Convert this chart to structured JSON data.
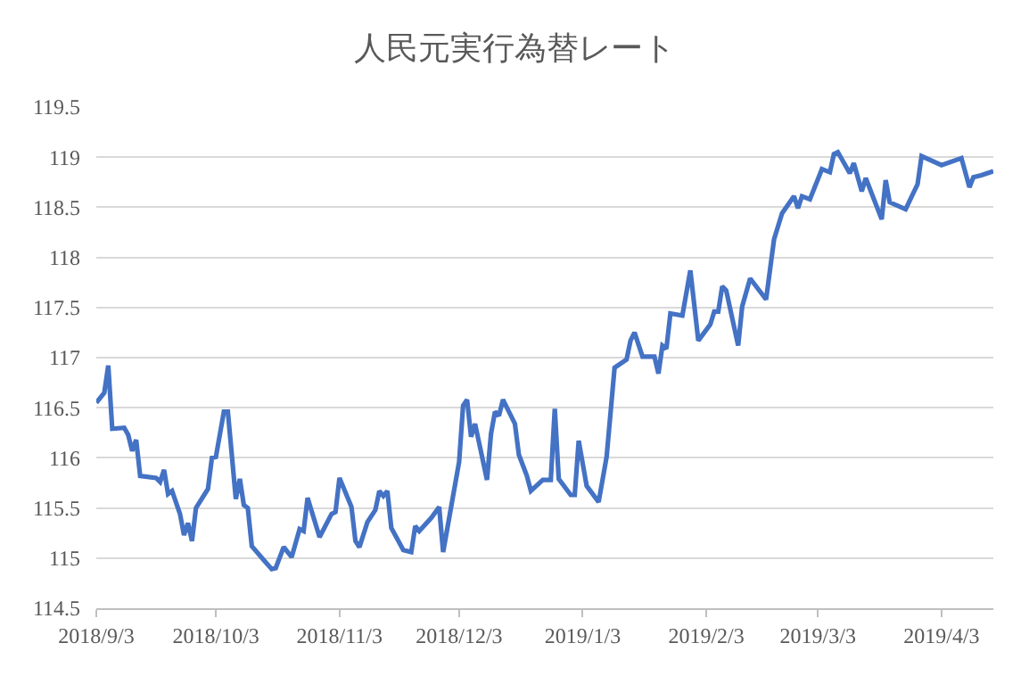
{
  "chart_data": {
    "type": "line",
    "title": "人民元実行為替レート",
    "x": [
      "2018-09-03",
      "2018-09-05",
      "2018-09-06",
      "2018-09-07",
      "2018-09-10",
      "2018-09-11",
      "2018-09-12",
      "2018-09-13",
      "2018-09-14",
      "2018-09-18",
      "2018-09-19",
      "2018-09-20",
      "2018-09-21",
      "2018-09-22",
      "2018-09-24",
      "2018-09-25",
      "2018-09-26",
      "2018-09-27",
      "2018-09-28",
      "2018-10-01",
      "2018-10-02",
      "2018-10-03",
      "2018-10-05",
      "2018-10-06",
      "2018-10-08",
      "2018-10-09",
      "2018-10-10",
      "2018-10-11",
      "2018-10-12",
      "2018-10-15",
      "2018-10-17",
      "2018-10-18",
      "2018-10-20",
      "2018-10-22",
      "2018-10-24",
      "2018-10-25",
      "2018-10-26",
      "2018-10-29",
      "2018-11-01",
      "2018-11-02",
      "2018-11-03",
      "2018-11-06",
      "2018-11-07",
      "2018-11-08",
      "2018-11-10",
      "2018-11-12",
      "2018-11-13",
      "2018-11-14",
      "2018-11-15",
      "2018-11-16",
      "2018-11-19",
      "2018-11-21",
      "2018-11-22",
      "2018-11-23",
      "2018-11-26",
      "2018-11-28",
      "2018-11-29",
      "2018-12-03",
      "2018-12-04",
      "2018-12-05",
      "2018-12-06",
      "2018-12-07",
      "2018-12-10",
      "2018-12-11",
      "2018-12-12",
      "2018-12-13",
      "2018-12-14",
      "2018-12-17",
      "2018-12-18",
      "2018-12-20",
      "2018-12-21",
      "2018-12-24",
      "2018-12-26",
      "2018-12-27",
      "2018-12-28",
      "2018-12-31",
      "2019-01-01",
      "2019-01-02",
      "2019-01-04",
      "2019-01-07",
      "2019-01-09",
      "2019-01-11",
      "2019-01-14",
      "2019-01-15",
      "2019-01-16",
      "2019-01-18",
      "2019-01-21",
      "2019-01-22",
      "2019-01-23",
      "2019-01-24",
      "2019-01-25",
      "2019-01-28",
      "2019-01-30",
      "2019-02-01",
      "2019-02-04",
      "2019-02-05",
      "2019-02-06",
      "2019-02-07",
      "2019-02-08",
      "2019-02-11",
      "2019-02-12",
      "2019-02-14",
      "2019-02-18",
      "2019-02-20",
      "2019-02-22",
      "2019-02-25",
      "2019-02-26",
      "2019-02-27",
      "2019-03-01",
      "2019-03-04",
      "2019-03-06",
      "2019-03-07",
      "2019-03-08",
      "2019-03-11",
      "2019-03-12",
      "2019-03-14",
      "2019-03-15",
      "2019-03-19",
      "2019-03-20",
      "2019-03-21",
      "2019-03-25",
      "2019-03-28",
      "2019-03-29",
      "2019-04-03",
      "2019-04-08",
      "2019-04-10",
      "2019-04-11",
      "2019-04-13",
      "2019-04-16"
    ],
    "series": [
      {
        "color": "#4472c4",
        "values": [
          116.55,
          116.65,
          116.92,
          116.29,
          116.3,
          116.23,
          116.07,
          116.18,
          115.82,
          115.8,
          115.76,
          115.88,
          115.64,
          115.67,
          115.44,
          115.23,
          115.35,
          115.17,
          115.5,
          115.69,
          116.0,
          116.01,
          116.46,
          116.46,
          115.59,
          115.79,
          115.53,
          115.5,
          115.12,
          114.98,
          114.89,
          114.9,
          115.11,
          115.01,
          115.29,
          115.27,
          115.6,
          115.21,
          115.44,
          115.46,
          115.8,
          115.51,
          115.17,
          115.11,
          115.36,
          115.48,
          115.67,
          115.62,
          115.67,
          115.3,
          115.08,
          115.06,
          115.32,
          115.27,
          115.4,
          115.51,
          115.06,
          115.96,
          116.52,
          116.58,
          116.21,
          116.34,
          115.78,
          116.24,
          116.46,
          116.42,
          116.58,
          116.34,
          116.03,
          115.82,
          115.67,
          115.78,
          115.78,
          116.49,
          115.79,
          115.63,
          115.63,
          116.17,
          115.72,
          115.56,
          116.01,
          116.9,
          116.98,
          117.17,
          117.25,
          117.01,
          117.01,
          116.84,
          117.12,
          117.09,
          117.44,
          117.42,
          117.87,
          117.17,
          117.33,
          117.46,
          117.46,
          117.71,
          117.67,
          117.12,
          117.51,
          117.79,
          117.58,
          118.18,
          118.44,
          118.61,
          118.49,
          118.61,
          118.58,
          118.88,
          118.85,
          119.03,
          119.05,
          118.84,
          118.94,
          118.66,
          118.79,
          118.38,
          118.77,
          118.55,
          118.48,
          118.73,
          119.01,
          118.92,
          118.99,
          118.7,
          118.8,
          118.82,
          118.86
        ]
      }
    ],
    "xlim": [
      "2018-09-03",
      "2019-04-16"
    ],
    "xticks": [
      {
        "value": "2018-09-03",
        "label": "2018/9/3"
      },
      {
        "value": "2018-10-03",
        "label": "2018/10/3"
      },
      {
        "value": "2018-11-03",
        "label": "2018/11/3"
      },
      {
        "value": "2018-12-03",
        "label": "2018/12/3"
      },
      {
        "value": "2019-01-03",
        "label": "2019/1/3"
      },
      {
        "value": "2019-02-03",
        "label": "2019/2/3"
      },
      {
        "value": "2019-03-03",
        "label": "2019/3/3"
      },
      {
        "value": "2019-04-03",
        "label": "2019/4/3"
      }
    ],
    "ylim": [
      114.5,
      119.5
    ],
    "yticks": [
      114.5,
      115,
      115.5,
      116,
      116.5,
      117,
      117.5,
      118,
      118.5,
      119,
      119.5
    ],
    "grid": "y",
    "marker": "none",
    "line_style": "solid"
  }
}
